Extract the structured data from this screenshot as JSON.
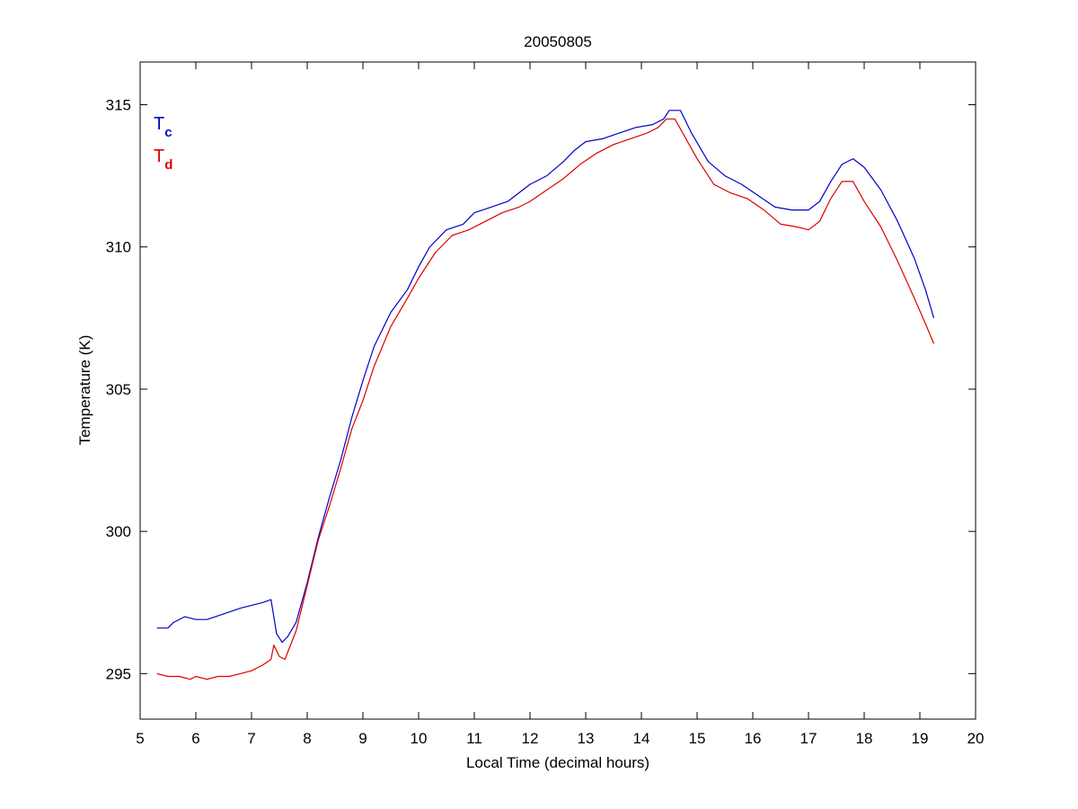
{
  "chart_data": {
    "type": "line",
    "title": "20050805",
    "xlabel": "Local Time (decimal hours)",
    "ylabel": "Temperature (K)",
    "xlim": [
      5,
      20
    ],
    "ylim": [
      293.4,
      316.5
    ],
    "xticks": [
      5,
      6,
      7,
      8,
      9,
      10,
      11,
      12,
      13,
      14,
      15,
      16,
      17,
      18,
      19,
      20
    ],
    "yticks": [
      295,
      300,
      305,
      310,
      315
    ],
    "grid": false,
    "legend_position": "top-left",
    "series": [
      {
        "name": "Tc",
        "legend_main": "T",
        "legend_sub": "c",
        "color": "#0000cc",
        "x": [
          5.3,
          5.5,
          5.6,
          5.8,
          6.0,
          6.2,
          6.5,
          6.8,
          7.0,
          7.2,
          7.35,
          7.45,
          7.55,
          7.65,
          7.8,
          8.0,
          8.2,
          8.4,
          8.6,
          8.8,
          9.0,
          9.2,
          9.5,
          9.8,
          10.0,
          10.2,
          10.5,
          10.8,
          11.0,
          11.3,
          11.6,
          12.0,
          12.3,
          12.6,
          12.8,
          13.0,
          13.3,
          13.6,
          13.9,
          14.2,
          14.4,
          14.5,
          14.7,
          14.9,
          15.2,
          15.5,
          15.8,
          16.1,
          16.4,
          16.7,
          17.0,
          17.2,
          17.4,
          17.6,
          17.8,
          18.0,
          18.3,
          18.6,
          18.9,
          19.1,
          19.25
        ],
        "y": [
          296.6,
          296.6,
          296.8,
          297.0,
          296.9,
          296.9,
          297.1,
          297.3,
          297.4,
          297.5,
          297.6,
          296.4,
          296.1,
          296.3,
          296.8,
          298.2,
          299.8,
          301.2,
          302.5,
          304.0,
          305.3,
          306.5,
          307.7,
          308.5,
          309.3,
          310.0,
          310.6,
          310.8,
          311.2,
          311.4,
          311.6,
          312.2,
          312.5,
          313.0,
          313.4,
          313.7,
          313.8,
          314.0,
          314.2,
          314.3,
          314.5,
          314.8,
          314.8,
          314.0,
          313.0,
          312.5,
          312.2,
          311.8,
          311.4,
          311.3,
          311.3,
          311.6,
          312.3,
          312.9,
          313.1,
          312.8,
          312.0,
          310.9,
          309.6,
          308.5,
          307.5
        ]
      },
      {
        "name": "Td",
        "legend_main": "T",
        "legend_sub": "d",
        "color": "#dd0000",
        "x": [
          5.3,
          5.5,
          5.7,
          5.9,
          6.0,
          6.2,
          6.4,
          6.6,
          6.8,
          7.0,
          7.2,
          7.35,
          7.4,
          7.5,
          7.6,
          7.8,
          8.0,
          8.2,
          8.4,
          8.6,
          8.8,
          9.0,
          9.2,
          9.5,
          9.8,
          10.0,
          10.3,
          10.6,
          10.9,
          11.2,
          11.5,
          11.8,
          12.0,
          12.3,
          12.6,
          12.9,
          13.2,
          13.5,
          13.8,
          14.1,
          14.3,
          14.45,
          14.6,
          14.8,
          15.0,
          15.3,
          15.6,
          15.9,
          16.2,
          16.5,
          16.8,
          17.0,
          17.2,
          17.4,
          17.6,
          17.8,
          18.0,
          18.3,
          18.6,
          18.9,
          19.1,
          19.25
        ],
        "y": [
          295.0,
          294.9,
          294.9,
          294.8,
          294.9,
          294.8,
          294.9,
          294.9,
          295.0,
          295.1,
          295.3,
          295.5,
          296.0,
          295.6,
          295.5,
          296.5,
          298.1,
          299.7,
          300.9,
          302.2,
          303.6,
          304.6,
          305.8,
          307.2,
          308.2,
          308.9,
          309.8,
          310.4,
          310.6,
          310.9,
          311.2,
          311.4,
          311.6,
          312.0,
          312.4,
          312.9,
          313.3,
          313.6,
          313.8,
          314.0,
          314.2,
          314.5,
          314.5,
          313.8,
          313.1,
          312.2,
          311.9,
          311.7,
          311.3,
          310.8,
          310.7,
          310.6,
          310.9,
          311.7,
          312.3,
          312.3,
          311.6,
          310.7,
          309.5,
          308.2,
          307.3,
          306.6
        ]
      }
    ]
  }
}
